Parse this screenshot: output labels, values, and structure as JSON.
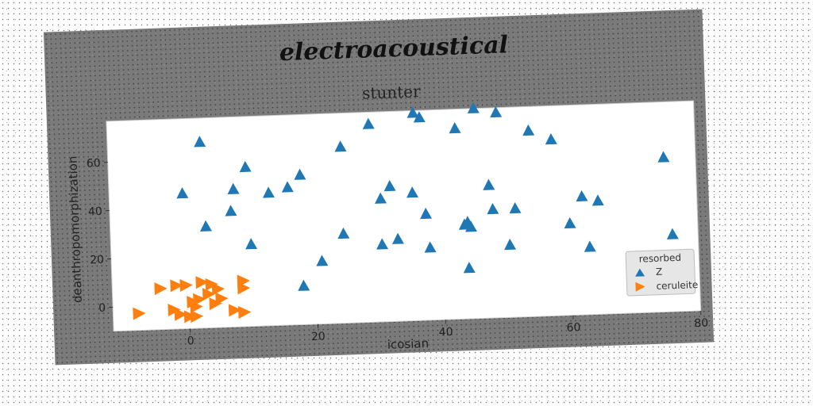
{
  "chart_data": {
    "type": "scatter",
    "suptitle": "electroacoustical",
    "title": "stunter",
    "xlabel": "icosian",
    "ylabel": "deanthropomorphization",
    "xlim": [
      -12,
      80
    ],
    "ylim": [
      -10,
      77
    ],
    "xticks": [
      0,
      20,
      40,
      60,
      80
    ],
    "yticks": [
      0,
      20,
      40,
      60
    ],
    "grid": false,
    "legend": {
      "title": "resorbed",
      "placement": "bottom-right"
    },
    "series": [
      {
        "name": "Z",
        "marker": "triangle-up",
        "color": "#1f77b4",
        "points": [
          [
            2.5,
            67
          ],
          [
            -0.5,
            46
          ],
          [
            3,
            32
          ],
          [
            7.5,
            47
          ],
          [
            7,
            38
          ],
          [
            9.5,
            56
          ],
          [
            10,
            24
          ],
          [
            13,
            45
          ],
          [
            16,
            47
          ],
          [
            18,
            52
          ],
          [
            18,
            6
          ],
          [
            21,
            16
          ],
          [
            24.5,
            63
          ],
          [
            24.5,
            27
          ],
          [
            29,
            72
          ],
          [
            30.5,
            41
          ],
          [
            30.5,
            22
          ],
          [
            32,
            46
          ],
          [
            33,
            24
          ],
          [
            35.5,
            43
          ],
          [
            36,
            76
          ],
          [
            37,
            74
          ],
          [
            37.5,
            34
          ],
          [
            38,
            20
          ],
          [
            42.5,
            69
          ],
          [
            43.5,
            29
          ],
          [
            44,
            11
          ],
          [
            44,
            30
          ],
          [
            44.5,
            28
          ],
          [
            45.5,
            77
          ],
          [
            47.5,
            45
          ],
          [
            48,
            35
          ],
          [
            49,
            75
          ],
          [
            50.5,
            20
          ],
          [
            51.5,
            35
          ],
          [
            54,
            67
          ],
          [
            57.5,
            63
          ],
          [
            60,
            28
          ],
          [
            62,
            39
          ],
          [
            63,
            18
          ],
          [
            64.5,
            37
          ],
          [
            75,
            54
          ],
          [
            76,
            22
          ]
        ]
      },
      {
        "name": "ceruleite",
        "marker": "triangle-right",
        "color": "#ff7f0e",
        "points": [
          [
            -8,
            -3
          ],
          [
            -4.5,
            7
          ],
          [
            -2,
            8
          ],
          [
            -2.5,
            -2
          ],
          [
            -1.5,
            -4
          ],
          [
            -0.5,
            8
          ],
          [
            0,
            -5
          ],
          [
            0.5,
            1
          ],
          [
            1,
            -1
          ],
          [
            1.5,
            2
          ],
          [
            2,
            9
          ],
          [
            3,
            4
          ],
          [
            3.5,
            8
          ],
          [
            4,
            0
          ],
          [
            4.5,
            6
          ],
          [
            5,
            2
          ],
          [
            7,
            -3
          ],
          [
            8.5,
            9
          ],
          [
            8.5,
            6
          ],
          [
            8.5,
            -4
          ],
          [
            1,
            -5
          ]
        ]
      }
    ]
  }
}
